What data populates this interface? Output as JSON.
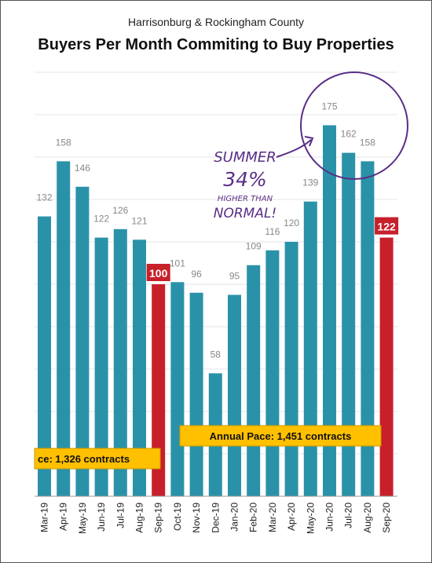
{
  "chart_data": {
    "type": "bar",
    "subtitle": "Harrisonburg & Rockingham County",
    "title": "Buyers Per Month Commiting to Buy Properties",
    "categories": [
      "Mar-19",
      "Apr-19",
      "May-19",
      "Jun-19",
      "Jul-19",
      "Aug-19",
      "Sep-19",
      "Oct-19",
      "Nov-19",
      "Dec-19",
      "Jan-20",
      "Feb-20",
      "Mar-20",
      "Apr-20",
      "May-20",
      "Jun-20",
      "Jul-20",
      "Aug-20",
      "Sep-20"
    ],
    "values": [
      132,
      158,
      146,
      122,
      126,
      121,
      100,
      101,
      96,
      58,
      95,
      109,
      116,
      120,
      139,
      175,
      162,
      158,
      122
    ],
    "highlighted": [
      "Sep-19",
      "Sep-20"
    ],
    "ylim": [
      0,
      200
    ],
    "grid": true,
    "colors": {
      "bar": "#2a92a8",
      "highlight": "#c8202a",
      "label": "#888888",
      "banner": "#ffc000",
      "annotation": "#5a2d86"
    },
    "annual_pace_1": "ce: 1,326 contracts",
    "annual_pace_2": "Annual Pace: 1,451 contracts",
    "annotation_lines": [
      "SUMMER",
      "34%",
      "HIGHER THAN",
      "NORMAL!"
    ]
  }
}
